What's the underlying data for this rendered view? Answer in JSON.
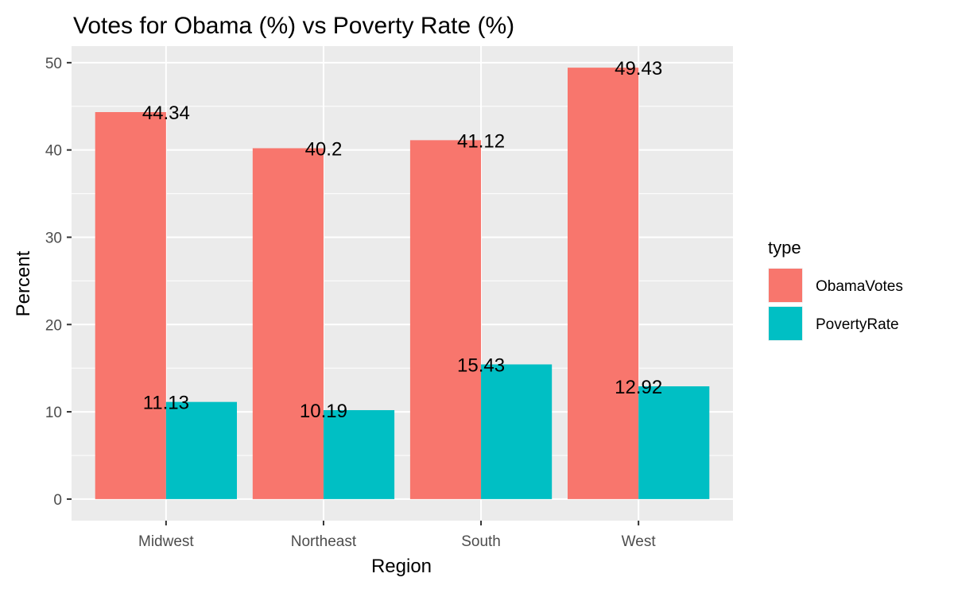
{
  "chart_data": {
    "type": "bar",
    "title": "Votes for Obama (%) vs Poverty Rate (%)",
    "xlabel": "Region",
    "ylabel": "Percent",
    "categories": [
      "Midwest",
      "Northeast",
      "South",
      "West"
    ],
    "series": [
      {
        "name": "ObamaVotes",
        "values": [
          44.34,
          40.2,
          41.12,
          49.43
        ],
        "labels": [
          "44.34",
          "40.2",
          "41.12",
          "49.43"
        ],
        "color": "#F8766D"
      },
      {
        "name": "PovertyRate",
        "values": [
          11.13,
          10.19,
          15.43,
          12.92
        ],
        "labels": [
          "11.13",
          "10.19",
          "15.43",
          "12.92"
        ],
        "color": "#00BFC4"
      }
    ],
    "ylim": [
      -2.47,
      51.9
    ],
    "yticks": [
      0,
      10,
      20,
      30,
      40,
      50
    ],
    "grid": true,
    "legend": {
      "title": "type",
      "position": "right"
    },
    "panel_background": "#EBEBEB"
  }
}
